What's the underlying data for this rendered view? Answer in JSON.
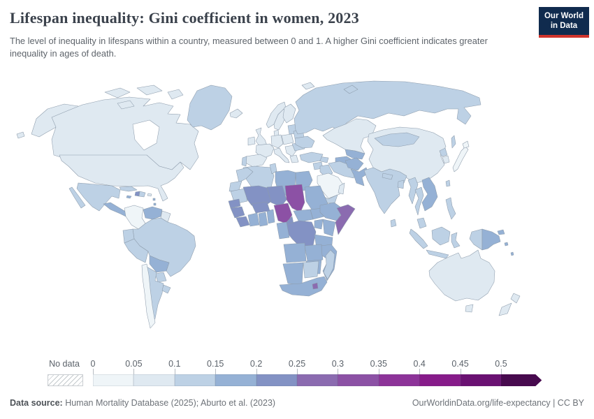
{
  "header": {
    "title": "Lifespan inequality: Gini coefficient in women, 2023",
    "subtitle": "The level of inequality in lifespans within a country, measured between 0 and 1. A higher Gini coefficient indicates greater inequality in ages of death.",
    "logo_line1": "Our World",
    "logo_line2": "in Data",
    "logo_bg": "#102b4e",
    "logo_accent": "#d0342c"
  },
  "footer": {
    "source_label": "Data source:",
    "source_text": " Human Mortality Database (2025); Aburto et al. (2023)",
    "right_text": "OurWorldinData.org/life-expectancy | CC BY"
  },
  "chart_data": {
    "type": "choropleth",
    "title": "Lifespan inequality: Gini coefficient in women",
    "year": "2023",
    "no_data_label": "No data",
    "legend_position": "bottom",
    "bins": [
      {
        "label": "0",
        "range": "0-0.05",
        "color": "#eff5f8"
      },
      {
        "label": "0.05",
        "range": "0.05-0.1",
        "color": "#dfe9f1"
      },
      {
        "label": "0.1",
        "range": "0.1-0.15",
        "color": "#bdd1e5"
      },
      {
        "label": "0.15",
        "range": "0.15-0.2",
        "color": "#95b1d5"
      },
      {
        "label": "0.2",
        "range": "0.2-0.25",
        "color": "#8392c4"
      },
      {
        "label": "0.25",
        "range": "0.25-0.3",
        "color": "#8b6bb0"
      },
      {
        "label": "0.3",
        "range": "0.3-0.35",
        "color": "#8c51a5"
      },
      {
        "label": "0.35",
        "range": "0.35-0.4",
        "color": "#8d3399"
      },
      {
        "label": "0.4",
        "range": "0.4-0.45",
        "color": "#871b8a"
      },
      {
        "label": "0.45",
        "range": "0.45-0.5",
        "color": "#6a1172"
      },
      {
        "label": "0.5",
        "range": "0.5+",
        "color": "#470a4e"
      }
    ],
    "countries": {
      "canada": {
        "name": "Canada",
        "bin": 2
      },
      "united_states": {
        "name": "United States",
        "bin": 2
      },
      "greenland": {
        "name": "Greenland",
        "bin": 3
      },
      "mexico": {
        "name": "Mexico",
        "bin": 3
      },
      "central_america": {
        "name": "Central America region",
        "bin": 4
      },
      "cuba": {
        "name": "Cuba",
        "bin": 3
      },
      "haiti": {
        "name": "Haiti",
        "bin": 5
      },
      "dominican_republic": {
        "name": "Dominican Republic",
        "bin": 3
      },
      "jamaica": {
        "name": "Jamaica",
        "bin": 4
      },
      "puerto_rico": {
        "name": "Puerto Rico",
        "bin": 2
      },
      "colombia": {
        "name": "Colombia",
        "bin": 1
      },
      "venezuela": {
        "name": "Venezuela",
        "bin": 4
      },
      "guyana": {
        "name": "Guyanas",
        "bin": 2
      },
      "ecuador": {
        "name": "Ecuador",
        "bin": 3
      },
      "peru": {
        "name": "Peru",
        "bin": 3
      },
      "brazil": {
        "name": "Brazil",
        "bin": 3
      },
      "bolivia": {
        "name": "Bolivia",
        "bin": 4
      },
      "paraguay": {
        "name": "Paraguay",
        "bin": 3
      },
      "chile": {
        "name": "Chile",
        "bin": 1
      },
      "argentina": {
        "name": "Argentina",
        "bin": 3
      },
      "uruguay": {
        "name": "Uruguay",
        "bin": 3
      },
      "iceland": {
        "name": "Iceland",
        "bin": 2
      },
      "ireland": {
        "name": "Ireland",
        "bin": 2
      },
      "united_kingdom": {
        "name": "United Kingdom",
        "bin": 2
      },
      "norway": {
        "name": "Norway",
        "bin": 2
      },
      "sweden": {
        "name": "Sweden",
        "bin": 2
      },
      "finland": {
        "name": "Finland",
        "bin": 2
      },
      "denmark": {
        "name": "Denmark",
        "bin": 2
      },
      "germany": {
        "name": "Germany",
        "bin": 2
      },
      "france": {
        "name": "France",
        "bin": 2
      },
      "spain": {
        "name": "Spain",
        "bin": 2
      },
      "portugal": {
        "name": "Portugal",
        "bin": 3
      },
      "italy": {
        "name": "Italy",
        "bin": 2
      },
      "balkans": {
        "name": "Balkans region",
        "bin": 2
      },
      "greece": {
        "name": "Greece",
        "bin": 2
      },
      "poland": {
        "name": "Poland",
        "bin": 2
      },
      "baltic_states": {
        "name": "Baltic states",
        "bin": 3
      },
      "belarus": {
        "name": "Belarus",
        "bin": 3
      },
      "ukraine": {
        "name": "Ukraine",
        "bin": 3
      },
      "romania": {
        "name": "Romania",
        "bin": 3
      },
      "svalbard": {
        "name": "Svalbard",
        "bin": 2
      },
      "russia": {
        "name": "Russia",
        "bin": 3
      },
      "kazakhstan": {
        "name": "Kazakhstan",
        "bin": 2
      },
      "uzbekistan": {
        "name": "Uzbekistan",
        "bin": 4
      },
      "turkmenistan": {
        "name": "Turkmenistan",
        "bin": 4
      },
      "caucasus": {
        "name": "Caucasus region",
        "bin": 3
      },
      "turkey": {
        "name": "Turkey",
        "bin": 3
      },
      "syria": {
        "name": "Syria",
        "bin": 3
      },
      "iraq": {
        "name": "Iraq",
        "bin": 3
      },
      "iran": {
        "name": "Iran",
        "bin": 3
      },
      "saudi_arabia": {
        "name": "Saudi Arabia",
        "bin": 1
      },
      "yemen": {
        "name": "Yemen",
        "bin": 3
      },
      "oman": {
        "name": "Oman",
        "bin": 2
      },
      "afghanistan": {
        "name": "Afghanistan",
        "bin": 4
      },
      "pakistan": {
        "name": "Pakistan",
        "bin": 4
      },
      "india": {
        "name": "India",
        "bin": 3
      },
      "nepal": {
        "name": "Nepal",
        "bin": 3
      },
      "bangladesh": {
        "name": "Bangladesh",
        "bin": 3
      },
      "sri_lanka": {
        "name": "Sri Lanka",
        "bin": 3
      },
      "china": {
        "name": "China",
        "bin": 2
      },
      "mongolia": {
        "name": "Mongolia",
        "bin": 3
      },
      "north_korea": {
        "name": "North Korea",
        "bin": 3
      },
      "south_korea": {
        "name": "South Korea",
        "bin": 2
      },
      "japan": {
        "name": "Japan",
        "bin": 1
      },
      "taiwan": {
        "name": "Taiwan",
        "bin": 3
      },
      "myanmar": {
        "name": "Myanmar",
        "bin": 3
      },
      "thailand": {
        "name": "Thailand",
        "bin": 3
      },
      "indochina": {
        "name": "Vietnam, Laos and Cambodia",
        "bin": 4
      },
      "malaysia": {
        "name": "Malaysia",
        "bin": 3
      },
      "indonesia": {
        "name": "Indonesia",
        "bin": 3
      },
      "philippines": {
        "name": "Philippines",
        "bin": 3
      },
      "papua_new_guinea": {
        "name": "Papua New Guinea",
        "bin": 4
      },
      "pacific_islands": {
        "name": "Pacific islands",
        "bin": 4
      },
      "australia": {
        "name": "Australia",
        "bin": 2
      },
      "new_zealand": {
        "name": "New Zealand",
        "bin": 2
      },
      "morocco": {
        "name": "Morocco",
        "bin": 3
      },
      "western_sahara": {
        "name": "Western Sahara",
        "bin": 3
      },
      "algeria": {
        "name": "Algeria",
        "bin": 3
      },
      "tunisia": {
        "name": "Tunisia",
        "bin": 3
      },
      "libya": {
        "name": "Libya",
        "bin": 4
      },
      "egypt": {
        "name": "Egypt",
        "bin": 4
      },
      "mauritania": {
        "name": "Mauritania",
        "bin": 3
      },
      "mali": {
        "name": "Mali",
        "bin": 5
      },
      "niger": {
        "name": "Niger",
        "bin": 5
      },
      "chad": {
        "name": "Chad",
        "bin": 7
      },
      "sudan": {
        "name": "Sudan",
        "bin": 4
      },
      "senegal": {
        "name": "Senegal",
        "bin": 5
      },
      "guinea": {
        "name": "Guinea",
        "bin": 5
      },
      "sierra_leone_liberia": {
        "name": "Sierra Leone and Liberia",
        "bin": 5
      },
      "ivory_coast": {
        "name": "Cote d'Ivoire",
        "bin": 4
      },
      "ghana": {
        "name": "Ghana",
        "bin": 4
      },
      "togo_benin": {
        "name": "Togo and Benin",
        "bin": 4
      },
      "burkina_faso": {
        "name": "Burkina Faso",
        "bin": 5
      },
      "nigeria": {
        "name": "Nigeria",
        "bin": 7
      },
      "cameroon": {
        "name": "Cameroon",
        "bin": 5
      },
      "central_african_republic": {
        "name": "Central African Republic",
        "bin": 4
      },
      "south_sudan": {
        "name": "South Sudan",
        "bin": 4
      },
      "ethiopia": {
        "name": "Ethiopia",
        "bin": 4
      },
      "somalia": {
        "name": "Somalia",
        "bin": 6
      },
      "kenya": {
        "name": "Kenya",
        "bin": 4
      },
      "uganda": {
        "name": "Uganda",
        "bin": 4
      },
      "dr_congo": {
        "name": "Democratic Republic of Congo",
        "bin": 5
      },
      "congo_gabon": {
        "name": "Congo and Gabon",
        "bin": 4
      },
      "tanzania": {
        "name": "Tanzania",
        "bin": 4
      },
      "angola": {
        "name": "Angola",
        "bin": 4
      },
      "zambia": {
        "name": "Zambia",
        "bin": 4
      },
      "mozambique": {
        "name": "Mozambique",
        "bin": 4
      },
      "zimbabwe": {
        "name": "Zimbabwe",
        "bin": 4
      },
      "namibia": {
        "name": "Namibia",
        "bin": 4
      },
      "botswana": {
        "name": "Botswana",
        "bin": 3
      },
      "south_africa": {
        "name": "South Africa",
        "bin": 4
      },
      "lesotho": {
        "name": "Lesotho",
        "bin": 6
      },
      "madagascar": {
        "name": "Madagascar",
        "bin": 3
      }
    }
  }
}
